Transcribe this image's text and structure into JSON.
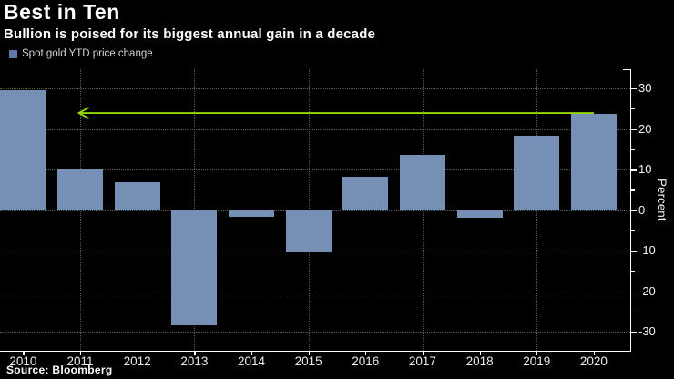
{
  "header": {
    "title": "Best in Ten",
    "subtitle": "Bullion is poised for its biggest annual gain in a decade"
  },
  "legend": {
    "label": "Spot gold YTD price change"
  },
  "footer": {
    "source": "Source: Bloomberg"
  },
  "colors": {
    "background": "#000000",
    "bar": "#7590b4",
    "legend_swatch": "#5d7aa4",
    "arrow": "#95d800",
    "grid": "#5e5e5e",
    "axis": "#ffffff",
    "text": "#ffffff"
  },
  "chart_data": {
    "type": "bar",
    "title": "Best in Ten",
    "subtitle": "Bullion is poised for its biggest annual gain in a decade",
    "legend_entries": [
      "Spot gold YTD price change"
    ],
    "legend_position": "top-left",
    "categories": [
      "2010",
      "2011",
      "2012",
      "2013",
      "2014",
      "2015",
      "2016",
      "2017",
      "2018",
      "2019",
      "2020"
    ],
    "values": [
      29.5,
      10.1,
      7.0,
      -28.3,
      -1.6,
      -10.4,
      8.2,
      13.6,
      -1.8,
      18.3,
      23.7
    ],
    "xlabel": "",
    "ylabel": "Percent",
    "y_axis_side": "right",
    "ylim": [
      -34.6,
      34.7
    ],
    "yticks_major": [
      30,
      20,
      10,
      0,
      -10,
      -20,
      -30
    ],
    "yticks_minor": [
      25,
      15,
      5,
      -5,
      -15,
      -25
    ],
    "grid": {
      "horizontal_at": [
        30,
        20,
        10,
        0,
        -10,
        -20,
        -30
      ],
      "vertical_at_categories": [
        "2011",
        "2013",
        "2015",
        "2017",
        "2019"
      ],
      "style": "dotted"
    },
    "annotation_arrow": {
      "description": "horizontal arrow from top of 2020 bar pointing left back a decade to 2011",
      "y_value": 23.7,
      "from_category": "2020",
      "to_category": "2011",
      "direction": "left"
    }
  }
}
